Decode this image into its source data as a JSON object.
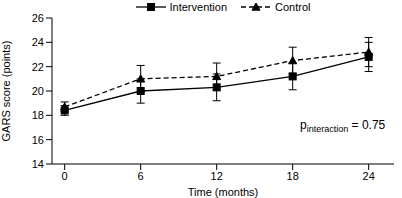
{
  "chart_data": {
    "type": "line",
    "x_label": "Time (months)",
    "y_label": "GARS score (points)",
    "x": [
      0,
      6,
      12,
      18,
      24
    ],
    "xlim": [
      -1,
      26
    ],
    "xticks": [
      0,
      6,
      12,
      18,
      24
    ],
    "ylim": [
      14,
      26
    ],
    "yticks": [
      14,
      16,
      18,
      20,
      22,
      24,
      26
    ],
    "grid": false,
    "legend": "top",
    "series": [
      {
        "name": "Intervention",
        "color": "#000000",
        "marker": "square",
        "line_style": "solid",
        "values": [
          18.4,
          20.0,
          20.3,
          21.2,
          22.8
        ],
        "error": [
          0.4,
          1.0,
          1.1,
          1.1,
          1.2
        ]
      },
      {
        "name": "Control",
        "color": "#000000",
        "marker": "triangle",
        "line_style": "dashed",
        "values": [
          18.7,
          21.0,
          21.2,
          22.5,
          23.2
        ],
        "error": [
          0.4,
          1.1,
          1.1,
          1.1,
          1.2
        ]
      }
    ],
    "annotations": [
      {
        "text": "p",
        "subscript": "interaction",
        "suffix": " = 0.75"
      }
    ]
  }
}
